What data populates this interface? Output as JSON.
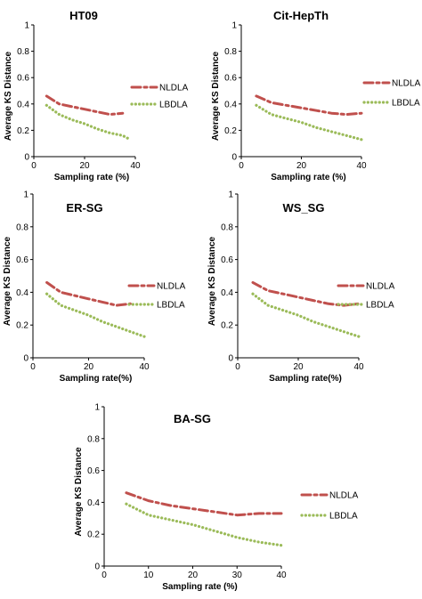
{
  "chart_data": [
    {
      "type": "line",
      "title": "HT09",
      "xlabel": "Sampling rate (%)",
      "ylabel": "Average KS Distance",
      "xlim": [
        0,
        40
      ],
      "ylim": [
        0,
        1
      ],
      "xticks": [
        "0",
        "20",
        "40"
      ],
      "yticks": [
        "0",
        "0.2",
        "0.4",
        "0.6",
        "0.8",
        "1"
      ],
      "legend_position": "right",
      "grid": false,
      "series": [
        {
          "name": "NLDLA",
          "color": "#c0504d",
          "style": "dash-dot",
          "x": [
            5,
            10,
            15,
            20,
            25,
            30,
            35
          ],
          "y": [
            0.46,
            0.4,
            0.38,
            0.36,
            0.34,
            0.32,
            0.33
          ]
        },
        {
          "name": "LBDLA",
          "color": "#9bbb59",
          "style": "dotted",
          "x": [
            5,
            10,
            15,
            20,
            25,
            30,
            35,
            38
          ],
          "y": [
            0.39,
            0.32,
            0.28,
            0.25,
            0.21,
            0.18,
            0.16,
            0.13
          ]
        }
      ]
    },
    {
      "type": "line",
      "title": "Cit-HepTh",
      "xlabel": "Sampling rate (%)",
      "ylabel": "Average KS Distance",
      "xlim": [
        0,
        40
      ],
      "ylim": [
        0,
        1
      ],
      "xticks": [
        "0",
        "20",
        "40"
      ],
      "yticks": [
        "0",
        "0.2",
        "0.4",
        "0.6",
        "0.8",
        "1"
      ],
      "legend_position": "right",
      "grid": false,
      "series": [
        {
          "name": "NLDLA",
          "color": "#c0504d",
          "style": "dash-dot",
          "x": [
            5,
            10,
            15,
            20,
            25,
            30,
            35,
            40
          ],
          "y": [
            0.46,
            0.41,
            0.39,
            0.37,
            0.35,
            0.33,
            0.32,
            0.33
          ]
        },
        {
          "name": "LBDLA",
          "color": "#9bbb59",
          "style": "dotted",
          "x": [
            5,
            10,
            15,
            20,
            25,
            30,
            35,
            40
          ],
          "y": [
            0.39,
            0.32,
            0.29,
            0.26,
            0.22,
            0.19,
            0.16,
            0.13
          ]
        }
      ]
    },
    {
      "type": "line",
      "title": "ER-SG",
      "xlabel": "Sampling rate(%)",
      "ylabel": "Average KS Distance",
      "xlim": [
        0,
        40
      ],
      "ylim": [
        0,
        1
      ],
      "xticks": [
        "0",
        "20",
        "40"
      ],
      "yticks": [
        "0",
        "0.2",
        "0.4",
        "0.6",
        "0.8",
        "1"
      ],
      "legend_position": "right",
      "grid": false,
      "series": [
        {
          "name": "NLDLA",
          "color": "#c0504d",
          "style": "dash-dot",
          "x": [
            5,
            10,
            15,
            20,
            25,
            30,
            35
          ],
          "y": [
            0.46,
            0.4,
            0.38,
            0.36,
            0.34,
            0.32,
            0.33
          ]
        },
        {
          "name": "LBDLA",
          "color": "#9bbb59",
          "style": "dotted",
          "x": [
            5,
            10,
            15,
            20,
            25,
            30,
            35,
            40
          ],
          "y": [
            0.39,
            0.32,
            0.29,
            0.26,
            0.22,
            0.19,
            0.16,
            0.13
          ]
        }
      ]
    },
    {
      "type": "line",
      "title": "WS_SG",
      "xlabel": "Sampling rate(%)",
      "ylabel": "Average KS Distance",
      "xlim": [
        0,
        40
      ],
      "ylim": [
        0,
        1
      ],
      "xticks": [
        "0",
        "20",
        "40"
      ],
      "yticks": [
        "0",
        "0.2",
        "0.4",
        "0.6",
        "0.8",
        "1"
      ],
      "legend_position": "right",
      "grid": false,
      "series": [
        {
          "name": "NLDLA",
          "color": "#c0504d",
          "style": "dash-dot",
          "x": [
            5,
            10,
            15,
            20,
            25,
            30,
            35,
            40
          ],
          "y": [
            0.46,
            0.41,
            0.39,
            0.37,
            0.35,
            0.33,
            0.32,
            0.33
          ]
        },
        {
          "name": "LBDLA",
          "color": "#9bbb59",
          "style": "dotted",
          "x": [
            5,
            10,
            15,
            20,
            25,
            30,
            35,
            40
          ],
          "y": [
            0.39,
            0.32,
            0.29,
            0.26,
            0.22,
            0.19,
            0.16,
            0.13
          ]
        }
      ]
    },
    {
      "type": "line",
      "title": "BA-SG",
      "xlabel": "Sampling rate (%)",
      "ylabel": "Average KS Distance",
      "xlim": [
        0,
        40
      ],
      "ylim": [
        0,
        1
      ],
      "xticks": [
        "0",
        "10",
        "20",
        "30",
        "40"
      ],
      "yticks": [
        "0",
        "0.2",
        "0.4",
        "0.6",
        "0.8",
        "1"
      ],
      "legend_position": "right",
      "grid": false,
      "series": [
        {
          "name": "NLDLA",
          "color": "#c0504d",
          "style": "dash-dot",
          "x": [
            5,
            10,
            15,
            20,
            25,
            30,
            35,
            40
          ],
          "y": [
            0.46,
            0.41,
            0.38,
            0.36,
            0.34,
            0.32,
            0.33,
            0.33
          ]
        },
        {
          "name": "LBDLA",
          "color": "#9bbb59",
          "style": "dotted",
          "x": [
            5,
            10,
            15,
            20,
            25,
            30,
            35,
            40
          ],
          "y": [
            0.39,
            0.32,
            0.29,
            0.26,
            0.22,
            0.18,
            0.15,
            0.13
          ]
        }
      ]
    }
  ]
}
